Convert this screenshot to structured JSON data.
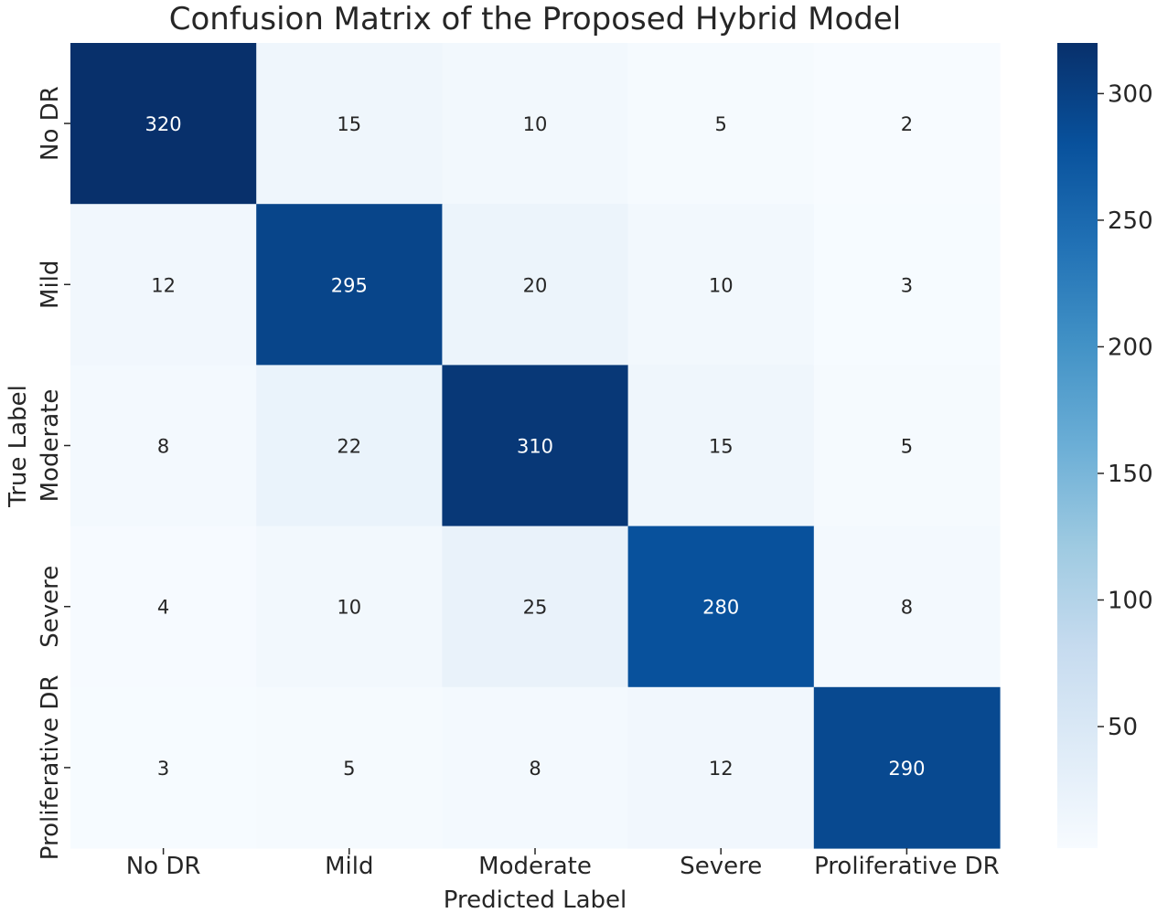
{
  "chart_data": {
    "type": "heatmap",
    "title": "Confusion Matrix of the Proposed Hybrid Model",
    "xlabel": "Predicted Label",
    "ylabel": "True Label",
    "x_categories": [
      "No DR",
      "Mild",
      "Moderate",
      "Severe",
      "Proliferative DR"
    ],
    "y_categories": [
      "No DR",
      "Mild",
      "Moderate",
      "Severe",
      "Proliferative DR"
    ],
    "values": [
      [
        320,
        15,
        10,
        5,
        2
      ],
      [
        12,
        295,
        20,
        10,
        3
      ],
      [
        8,
        22,
        310,
        15,
        5
      ],
      [
        4,
        10,
        25,
        280,
        8
      ],
      [
        3,
        5,
        8,
        12,
        290
      ]
    ],
    "colormap": "Blues",
    "vmin": 2,
    "vmax": 320,
    "colorbar_ticks": [
      50,
      100,
      150,
      200,
      250,
      300
    ],
    "grid": false,
    "legend": "colorbar-right"
  }
}
